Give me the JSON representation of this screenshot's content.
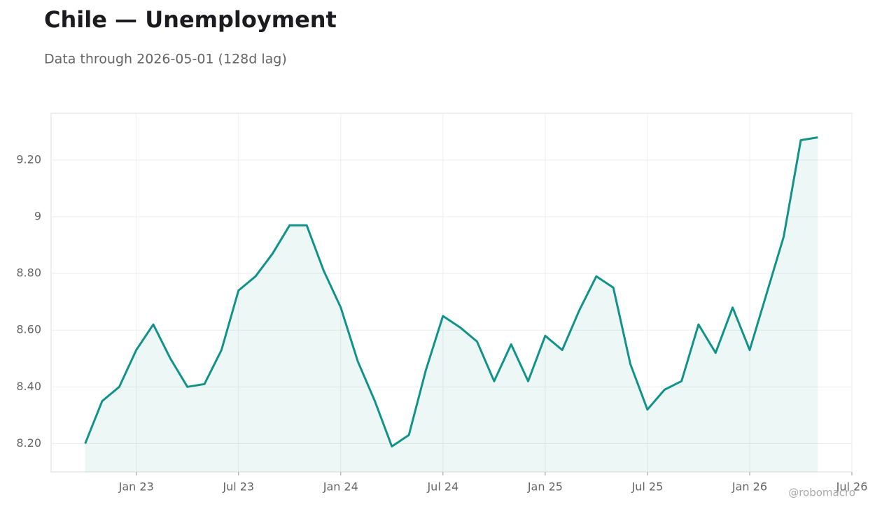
{
  "chart_data": {
    "type": "line",
    "title": "Chile — Unemployment",
    "subtitle": "Data through 2026-05-01 (128d lag)",
    "watermark": "@robomacro",
    "x": [
      "2022-10",
      "2022-11",
      "2022-12",
      "2023-01",
      "2023-02",
      "2023-03",
      "2023-04",
      "2023-05",
      "2023-06",
      "2023-07",
      "2023-08",
      "2023-09",
      "2023-10",
      "2023-11",
      "2023-12",
      "2024-01",
      "2024-02",
      "2024-03",
      "2024-04",
      "2024-05",
      "2024-06",
      "2024-07",
      "2024-08",
      "2024-09",
      "2024-10",
      "2024-11",
      "2024-12",
      "2025-01",
      "2025-02",
      "2025-03",
      "2025-04",
      "2025-05",
      "2025-06",
      "2025-07",
      "2025-08",
      "2025-09",
      "2025-10",
      "2025-11",
      "2025-12",
      "2026-01",
      "2026-02",
      "2026-03",
      "2026-04",
      "2026-05"
    ],
    "series": [
      {
        "name": "Unemployment",
        "color": "#12938a",
        "values": [
          8.2,
          8.35,
          8.4,
          8.53,
          8.62,
          8.5,
          8.4,
          8.41,
          8.53,
          8.74,
          8.79,
          8.87,
          8.97,
          8.97,
          8.81,
          8.68,
          8.49,
          8.35,
          8.19,
          8.23,
          8.46,
          8.65,
          8.61,
          8.56,
          8.42,
          8.55,
          8.42,
          8.58,
          8.53,
          8.67,
          8.79,
          8.75,
          8.48,
          8.32,
          8.39,
          8.42,
          8.62,
          8.52,
          8.68,
          8.53,
          8.73,
          8.93,
          9.27,
          9.28
        ]
      }
    ],
    "xlim": [
      "2022-08",
      "2026-07"
    ],
    "xticks": [
      {
        "value": "2023-01",
        "label": "Jan 23"
      },
      {
        "value": "2023-07",
        "label": "Jul 23"
      },
      {
        "value": "2024-01",
        "label": "Jan 24"
      },
      {
        "value": "2024-07",
        "label": "Jul 24"
      },
      {
        "value": "2025-01",
        "label": "Jan 25"
      },
      {
        "value": "2025-07",
        "label": "Jul 25"
      },
      {
        "value": "2026-01",
        "label": "Jan 26"
      },
      {
        "value": "2026-07",
        "label": "Jul 26"
      }
    ],
    "ylim": [
      8.1,
      9.365
    ],
    "yticks": [
      {
        "value": 8.2,
        "label": "8.20"
      },
      {
        "value": 8.4,
        "label": "8.40"
      },
      {
        "value": 8.6,
        "label": "8.60"
      },
      {
        "value": 8.8,
        "label": "8.80"
      },
      9,
      {
        "value": 9.2,
        "label": "9.20"
      }
    ],
    "grid": true,
    "area": true
  }
}
